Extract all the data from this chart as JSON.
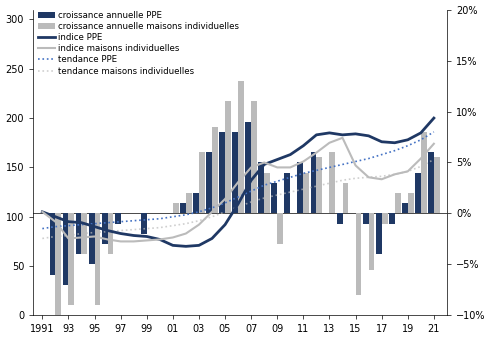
{
  "years": [
    1991,
    1992,
    1993,
    1994,
    1995,
    1996,
    1997,
    1998,
    1999,
    2000,
    2001,
    2002,
    2003,
    2004,
    2005,
    2006,
    2007,
    2008,
    2009,
    2010,
    2011,
    2012,
    2013,
    2014,
    2015,
    2016,
    2017,
    2018,
    2019,
    2020,
    2021
  ],
  "croissance_ppe": [
    0.0,
    -0.06,
    -0.07,
    -0.04,
    -0.05,
    -0.03,
    -0.01,
    0.0,
    -0.02,
    0.0,
    0.0,
    0.01,
    0.02,
    0.06,
    0.08,
    0.08,
    0.09,
    0.05,
    0.03,
    0.04,
    0.05,
    0.06,
    0.0,
    -0.01,
    0.0,
    -0.01,
    -0.04,
    -0.01,
    0.01,
    0.04,
    0.06
  ],
  "croissance_maisons": [
    0.0,
    -0.1,
    -0.09,
    -0.04,
    -0.09,
    -0.04,
    0.0,
    0.0,
    0.0,
    0.0,
    0.01,
    0.02,
    0.06,
    0.085,
    0.11,
    0.13,
    0.11,
    0.04,
    -0.03,
    0.0,
    0.04,
    0.055,
    0.06,
    0.03,
    -0.08,
    -0.055,
    -0.01,
    0.02,
    0.02,
    0.08,
    0.055
  ],
  "indice_ppe": [
    105,
    100,
    95,
    94,
    90,
    86,
    83,
    81,
    80,
    77,
    71,
    70,
    71,
    78,
    92,
    113,
    137,
    153,
    158,
    163,
    172,
    183,
    185,
    183,
    184,
    182,
    176,
    175,
    178,
    185,
    200
  ],
  "indice_maisons": [
    105,
    95,
    78,
    79,
    80,
    77,
    75,
    75,
    76,
    77,
    79,
    83,
    92,
    105,
    118,
    135,
    150,
    155,
    150,
    150,
    156,
    165,
    175,
    180,
    152,
    140,
    138,
    143,
    146,
    159,
    174
  ],
  "tendance_ppe": [
    88,
    90,
    91,
    92,
    93,
    94,
    95,
    96,
    97,
    98,
    100,
    102,
    105,
    109,
    114,
    120,
    126,
    132,
    136,
    140,
    144,
    147,
    150,
    153,
    156,
    159,
    163,
    167,
    172,
    178,
    186
  ],
  "tendance_maisons": [
    78,
    80,
    81,
    83,
    84,
    85,
    86,
    87,
    88,
    89,
    91,
    93,
    96,
    100,
    105,
    110,
    115,
    119,
    122,
    125,
    128,
    131,
    134,
    137,
    139,
    140,
    141,
    143,
    146,
    151,
    158
  ],
  "color_ppe_bar": "#1F3864",
  "color_maisons_bar": "#BBBBBB",
  "color_ppe_line": "#1F3864",
  "color_maisons_line": "#BBBBBB",
  "color_tendance_ppe": "#4472C4",
  "color_tendance_maisons": "#BBBBBB",
  "xtick_labels": [
    "1991",
    "93",
    "95",
    "97",
    "99",
    "01",
    "03",
    "05",
    "07",
    "09",
    "11",
    "13",
    "15",
    "17",
    "19",
    "21"
  ],
  "xtick_positions": [
    1991,
    1993,
    1995,
    1997,
    1999,
    2001,
    2003,
    2005,
    2007,
    2009,
    2011,
    2013,
    2015,
    2017,
    2019,
    2021
  ],
  "legend_labels": [
    "croissance annuelle PPE",
    "croissance annuelle maisons individuelles",
    "indice PPE",
    "indice maisons individuelles",
    "tendance PPE",
    "tendance maisons individuelles"
  ]
}
